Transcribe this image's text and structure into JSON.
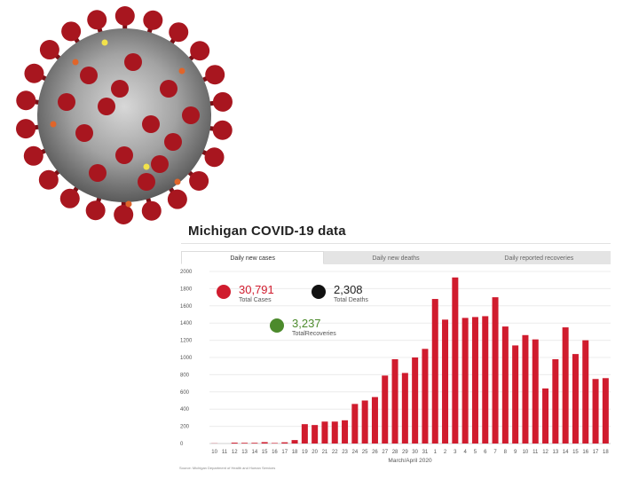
{
  "colors": {
    "cases": "#d01c2e",
    "deaths": "#111111",
    "recoveries": "#4c8a2c",
    "virus_spike": "#a8161f",
    "virus_body": "#8e8e8e"
  },
  "virus_image": {
    "icon": "coronavirus-illustration-icon"
  },
  "panel": {
    "title": "Michigan COVID-19 data",
    "tabs": [
      {
        "label": "Daily new cases",
        "active": true
      },
      {
        "label": "Daily new deaths",
        "active": false
      },
      {
        "label": "Daily reported recoveries",
        "active": false
      }
    ],
    "stats": {
      "cases": {
        "value": "30,791",
        "label": "Total Cases"
      },
      "deaths": {
        "value": "2,308",
        "label": "Total Deaths"
      },
      "recoveries": {
        "value": "3,237",
        "label": "TotalRecoveries"
      }
    },
    "source": "Source: Michigan Department of Health and Human Services"
  },
  "chart_data": {
    "type": "bar",
    "xlabel": "March/April 2020",
    "ylabel": "",
    "ylim": [
      0,
      2000
    ],
    "yticks": [
      0,
      200,
      400,
      600,
      800,
      1000,
      1200,
      1400,
      1600,
      1800,
      2000
    ],
    "grid": true,
    "categories": [
      "10",
      "11",
      "12",
      "13",
      "14",
      "15",
      "16",
      "17",
      "18",
      "19",
      "20",
      "21",
      "22",
      "23",
      "24",
      "25",
      "26",
      "27",
      "28",
      "29",
      "30",
      "31",
      "1",
      "2",
      "3",
      "4",
      "5",
      "6",
      "7",
      "8",
      "9",
      "10",
      "11",
      "12",
      "13",
      "14",
      "15",
      "16",
      "17",
      "18"
    ],
    "series": [
      {
        "name": "Daily new cases",
        "values": [
          2,
          0,
          10,
          8,
          8,
          16,
          6,
          14,
          40,
          225,
          215,
          255,
          255,
          270,
          460,
          500,
          540,
          790,
          980,
          820,
          1000,
          1100,
          1680,
          1440,
          1930,
          1460,
          1470,
          1480,
          1700,
          1360,
          1140,
          1260,
          1210,
          640,
          980,
          1350,
          1040,
          1200,
          750,
          760
        ]
      }
    ]
  }
}
